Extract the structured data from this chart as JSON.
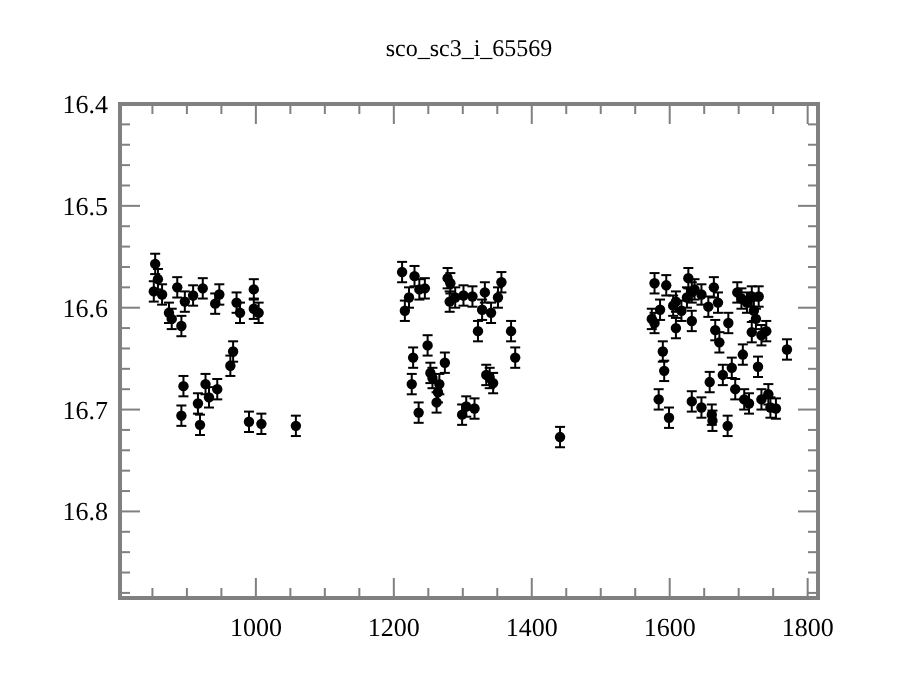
{
  "chart_data": {
    "type": "scatter",
    "title": "sco_sc3_i_65569",
    "marker": "circle",
    "grid": false,
    "xlim": [
      803,
      1815
    ],
    "ylim": [
      16.885,
      16.4
    ],
    "xticks": [
      {
        "value": 850,
        "label": null
      },
      {
        "value": 900,
        "label": null
      },
      {
        "value": 950,
        "label": null
      },
      1000,
      {
        "value": 1050,
        "label": null
      },
      {
        "value": 1100,
        "label": null
      },
      {
        "value": 1150,
        "label": null
      },
      1200,
      {
        "value": 1250,
        "label": null
      },
      {
        "value": 1300,
        "label": null
      },
      {
        "value": 1350,
        "label": null
      },
      1400,
      {
        "value": 1450,
        "label": null
      },
      {
        "value": 1500,
        "label": null
      },
      {
        "value": 1550,
        "label": null
      },
      1600,
      {
        "value": 1650,
        "label": null
      },
      {
        "value": 1700,
        "label": null
      },
      {
        "value": 1750,
        "label": null
      },
      1800
    ],
    "yticks": [
      16.4,
      {
        "value": 16.42,
        "label": null
      },
      {
        "value": 16.44,
        "label": null
      },
      {
        "value": 16.46,
        "label": null
      },
      {
        "value": 16.48,
        "label": null
      },
      16.5,
      {
        "value": 16.52,
        "label": null
      },
      {
        "value": 16.54,
        "label": null
      },
      {
        "value": 16.56,
        "label": null
      },
      {
        "value": 16.58,
        "label": null
      },
      16.6,
      {
        "value": 16.62,
        "label": null
      },
      {
        "value": 16.64,
        "label": null
      },
      {
        "value": 16.66,
        "label": null
      },
      {
        "value": 16.68,
        "label": null
      },
      16.7,
      {
        "value": 16.72,
        "label": null
      },
      {
        "value": 16.74,
        "label": null
      },
      {
        "value": 16.76,
        "label": null
      },
      {
        "value": 16.78,
        "label": null
      },
      16.8,
      {
        "value": 16.82,
        "label": null
      },
      {
        "value": 16.84,
        "label": null
      },
      {
        "value": 16.86,
        "label": null
      },
      {
        "value": 16.88,
        "label": null
      }
    ],
    "series": [
      {
        "color": "#000000",
        "x": [
          854,
          858,
          852,
          864,
          886,
          874,
          878,
          892,
          897,
          909,
          923,
          941,
          947,
          972,
          977,
          997,
          997,
          1004,
          967,
          963,
          895,
          892,
          927,
          932,
          916,
          919,
          944,
          990,
          1008,
          1058,
          1212,
          1216,
          1222,
          1230,
          1237,
          1245,
          1278,
          1282,
          1281,
          1289,
          1301,
          1314,
          1332,
          1328,
          1341,
          1351,
          1356,
          1322,
          1370,
          1376,
          1228,
          1226,
          1236,
          1249,
          1253,
          1256,
          1266,
          1264,
          1262,
          1274,
          1299,
          1305,
          1317,
          1334,
          1339,
          1344,
          1441,
          1578,
          1595,
          1627,
          1574,
          1578,
          1586,
          1605,
          1609,
          1609,
          1617,
          1625,
          1632,
          1636,
          1632,
          1646,
          1656,
          1664,
          1670,
          1666,
          1672,
          1685,
          1698,
          1704,
          1712,
          1719,
          1729,
          1722,
          1725,
          1719,
          1733,
          1740,
          1706,
          1728,
          1770,
          1590,
          1592,
          1584,
          1599,
          1632,
          1646,
          1658,
          1661,
          1662,
          1677,
          1690,
          1695,
          1684,
          1708,
          1715,
          1733,
          1743,
          1746,
          1754
        ],
        "values": [
          16.557,
          16.572,
          16.584,
          16.587,
          16.58,
          16.605,
          16.611,
          16.618,
          16.594,
          16.588,
          16.581,
          16.596,
          16.587,
          16.595,
          16.605,
          16.582,
          16.601,
          16.605,
          16.643,
          16.657,
          16.677,
          16.706,
          16.675,
          16.688,
          16.694,
          16.715,
          16.68,
          16.712,
          16.714,
          16.716,
          16.565,
          16.603,
          16.59,
          16.569,
          16.582,
          16.581,
          16.571,
          16.576,
          16.594,
          16.59,
          16.588,
          16.589,
          16.585,
          16.602,
          16.605,
          16.59,
          16.575,
          16.623,
          16.623,
          16.649,
          16.649,
          16.675,
          16.703,
          16.637,
          16.664,
          16.669,
          16.675,
          16.683,
          16.693,
          16.654,
          16.705,
          16.697,
          16.699,
          16.666,
          16.669,
          16.674,
          16.727,
          16.576,
          16.578,
          16.571,
          16.611,
          16.615,
          16.602,
          16.598,
          16.594,
          16.62,
          16.603,
          16.59,
          16.585,
          16.582,
          16.613,
          16.587,
          16.599,
          16.58,
          16.595,
          16.622,
          16.634,
          16.615,
          16.585,
          16.591,
          16.595,
          16.589,
          16.589,
          16.603,
          16.611,
          16.624,
          16.627,
          16.623,
          16.646,
          16.658,
          16.641,
          16.643,
          16.662,
          16.69,
          16.708,
          16.692,
          16.698,
          16.673,
          16.705,
          16.711,
          16.666,
          16.659,
          16.68,
          16.716,
          16.69,
          16.694,
          16.69,
          16.685,
          16.698,
          16.699
        ],
        "errors": [
          0.01,
          0.01,
          0.01,
          0.01,
          0.01,
          0.01,
          0.01,
          0.01,
          0.01,
          0.01,
          0.01,
          0.01,
          0.01,
          0.01,
          0.01,
          0.01,
          0.01,
          0.01,
          0.01,
          0.01,
          0.01,
          0.01,
          0.01,
          0.01,
          0.01,
          0.01,
          0.01,
          0.01,
          0.01,
          0.01,
          0.01,
          0.01,
          0.01,
          0.01,
          0.01,
          0.01,
          0.01,
          0.01,
          0.01,
          0.01,
          0.01,
          0.01,
          0.01,
          0.01,
          0.01,
          0.01,
          0.01,
          0.01,
          0.01,
          0.01,
          0.01,
          0.01,
          0.01,
          0.01,
          0.01,
          0.01,
          0.01,
          0.01,
          0.01,
          0.01,
          0.01,
          0.01,
          0.01,
          0.01,
          0.01,
          0.01,
          0.01,
          0.01,
          0.01,
          0.01,
          0.01,
          0.01,
          0.01,
          0.01,
          0.01,
          0.01,
          0.01,
          0.01,
          0.01,
          0.01,
          0.01,
          0.01,
          0.01,
          0.01,
          0.01,
          0.01,
          0.01,
          0.01,
          0.01,
          0.01,
          0.01,
          0.01,
          0.01,
          0.01,
          0.01,
          0.01,
          0.01,
          0.01,
          0.01,
          0.01,
          0.01,
          0.01,
          0.01,
          0.01,
          0.01,
          0.01,
          0.01,
          0.01,
          0.01,
          0.01,
          0.01,
          0.01,
          0.01,
          0.01,
          0.01,
          0.01,
          0.01,
          0.01,
          0.01,
          0.01
        ]
      }
    ]
  }
}
